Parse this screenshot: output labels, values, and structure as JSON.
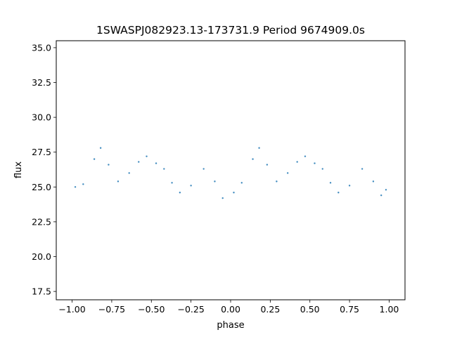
{
  "chart_data": {
    "type": "scatter",
    "title": "1SWASPJ082923.13-173731.9 Period 9674909.0s",
    "xlabel": "phase",
    "ylabel": "flux",
    "xlim": [
      -1.1,
      1.1
    ],
    "ylim": [
      16.9,
      35.5
    ],
    "x_ticks": [
      -1.0,
      -0.75,
      -0.5,
      -0.25,
      0.0,
      0.25,
      0.5,
      0.75,
      1.0
    ],
    "x_tick_labels": [
      "−1.00",
      "−0.75",
      "−0.50",
      "−0.25",
      "0.00",
      "0.25",
      "0.50",
      "0.75",
      "1.00"
    ],
    "y_ticks": [
      17.5,
      20.0,
      22.5,
      25.0,
      27.5,
      30.0,
      32.5,
      35.0
    ],
    "y_tick_labels": [
      "17.5",
      "20.0",
      "22.5",
      "25.0",
      "27.5",
      "30.0",
      "32.5",
      "35.0"
    ],
    "grid": false,
    "legend": "none",
    "marker_color": "#1f77b4",
    "series": [
      {
        "x": [
          -0.98,
          -0.93,
          -0.86,
          -0.82,
          -0.77,
          -0.71,
          -0.64,
          -0.58,
          -0.53,
          -0.47,
          -0.42,
          -0.37,
          -0.32,
          -0.25,
          -0.17,
          -0.1,
          -0.05,
          0.02,
          0.07,
          0.14,
          0.18,
          0.23,
          0.29,
          0.36,
          0.42,
          0.47,
          0.53,
          0.58,
          0.63,
          0.68,
          0.75,
          0.83,
          0.9,
          0.95,
          0.98
        ],
        "y": [
          25.0,
          25.2,
          27.0,
          27.8,
          26.6,
          25.4,
          26.0,
          26.8,
          27.2,
          26.7,
          26.3,
          25.3,
          24.6,
          25.1,
          26.3,
          25.4,
          24.2,
          24.6,
          25.3,
          27.0,
          27.8,
          26.6,
          25.4,
          26.0,
          26.8,
          27.2,
          26.7,
          26.3,
          25.3,
          24.6,
          25.1,
          26.3,
          25.4,
          24.4,
          24.8
        ]
      }
    ]
  }
}
